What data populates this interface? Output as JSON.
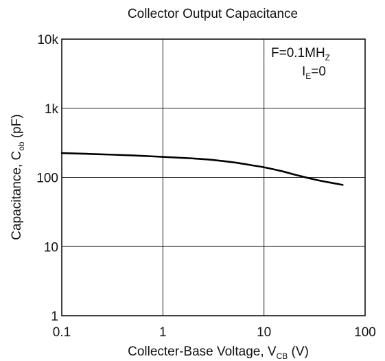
{
  "chart_data": {
    "type": "line",
    "title": "Collector Output Capacitance",
    "x_scale": "log",
    "y_scale": "log",
    "xlim": [
      0.1,
      100
    ],
    "ylim": [
      1,
      10000
    ],
    "x_ticks": [
      {
        "value": 0.1,
        "label": "0.1"
      },
      {
        "value": 1,
        "label": "1"
      },
      {
        "value": 10,
        "label": "10"
      },
      {
        "value": 100,
        "label": "100"
      }
    ],
    "y_ticks": [
      {
        "value": 1,
        "label": "1"
      },
      {
        "value": 10,
        "label": "10"
      },
      {
        "value": 100,
        "label": "100"
      },
      {
        "value": 1000,
        "label": "1k"
      },
      {
        "value": 10000,
        "label": "10k"
      }
    ],
    "xlabel": {
      "main": "Collecter-Base Voltage, V",
      "sub": "CB",
      "unit": " (V)"
    },
    "ylabel": {
      "main": "Capacitance, C",
      "sub": "ob",
      "unit": " (pF)"
    },
    "grid": true,
    "annotations": {
      "line1": {
        "main": "F=0.1MH",
        "sub": "Z"
      },
      "line2": {
        "main": "I",
        "sub": "E",
        "rest": "=0"
      }
    },
    "series": [
      {
        "x": [
          0.1,
          0.2,
          0.5,
          1,
          2,
          3,
          5,
          8,
          10,
          15,
          20,
          30,
          40,
          60
        ],
        "y": [
          225,
          218,
          208,
          198,
          188,
          180,
          165,
          148,
          140,
          123,
          110,
          95,
          87,
          78
        ]
      }
    ]
  }
}
